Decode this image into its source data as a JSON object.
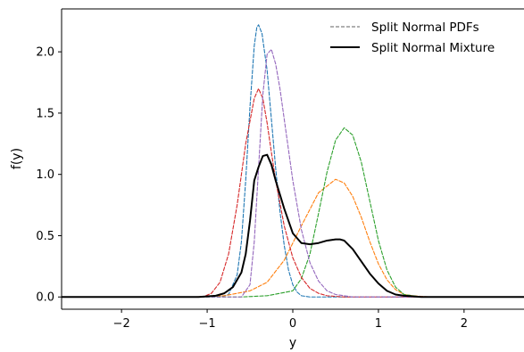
{
  "chart_data": {
    "type": "line",
    "xlabel": "y",
    "ylabel": "f(y)",
    "xlim": [
      -2.7,
      2.7
    ],
    "ylim": [
      -0.1,
      2.35
    ],
    "x_ticks": [
      -2,
      -1,
      0,
      1,
      2
    ],
    "x_tick_labels": [
      "−2",
      "−1",
      "0",
      "1",
      "2"
    ],
    "y_ticks": [
      0.0,
      0.5,
      1.0,
      1.5,
      2.0
    ],
    "y_tick_labels": [
      "0.0",
      "0.5",
      "1.0",
      "1.5",
      "2.0"
    ],
    "grid": false,
    "legend": {
      "position": "top-right",
      "entries": [
        {
          "label": "Split Normal PDFs",
          "style": "dashed",
          "color": "#808080"
        },
        {
          "label": "Split Normal Mixture",
          "style": "solid",
          "color": "#000000"
        }
      ]
    },
    "series": [
      {
        "color": "#1f77b4",
        "style": "dashed",
        "x": [
          -0.85,
          -0.75,
          -0.65,
          -0.6,
          -0.55,
          -0.5,
          -0.45,
          -0.42,
          -0.4,
          -0.36,
          -0.3,
          -0.25,
          -0.2,
          -0.15,
          -0.1,
          -0.05,
          0,
          0.05,
          0.1,
          0.2,
          0.3
        ],
        "y": [
          0,
          0.02,
          0.18,
          0.45,
          0.95,
          1.55,
          2.05,
          2.2,
          2.22,
          2.15,
          1.85,
          1.45,
          1.05,
          0.7,
          0.42,
          0.22,
          0.1,
          0.04,
          0.01,
          0,
          0
        ]
      },
      {
        "color": "#ff7f0e",
        "style": "dashed",
        "x": [
          -1.2,
          -0.8,
          -0.5,
          -0.3,
          -0.1,
          0.1,
          0.3,
          0.5,
          0.6,
          0.7,
          0.8,
          0.9,
          1.0,
          1.1,
          1.2,
          1.3,
          1.4,
          1.6
        ],
        "y": [
          0,
          0.01,
          0.05,
          0.12,
          0.3,
          0.58,
          0.85,
          0.96,
          0.93,
          0.82,
          0.65,
          0.45,
          0.27,
          0.14,
          0.06,
          0.02,
          0.01,
          0
        ]
      },
      {
        "color": "#2ca02c",
        "style": "dashed",
        "x": [
          -0.6,
          -0.3,
          0,
          0.1,
          0.2,
          0.3,
          0.4,
          0.5,
          0.6,
          0.7,
          0.8,
          0.9,
          1.0,
          1.1,
          1.2,
          1.3,
          1.5
        ],
        "y": [
          0,
          0.01,
          0.05,
          0.15,
          0.35,
          0.68,
          1.02,
          1.28,
          1.38,
          1.32,
          1.1,
          0.78,
          0.46,
          0.22,
          0.08,
          0.02,
          0
        ]
      },
      {
        "color": "#d62728",
        "style": "dashed",
        "x": [
          -1.05,
          -0.95,
          -0.85,
          -0.75,
          -0.65,
          -0.55,
          -0.45,
          -0.4,
          -0.35,
          -0.3,
          -0.25,
          -0.2,
          -0.1,
          0,
          0.1,
          0.2,
          0.3,
          0.4,
          0.6
        ],
        "y": [
          0,
          0.03,
          0.12,
          0.35,
          0.75,
          1.25,
          1.62,
          1.7,
          1.62,
          1.42,
          1.18,
          0.95,
          0.58,
          0.32,
          0.16,
          0.07,
          0.03,
          0.01,
          0
        ]
      },
      {
        "color": "#9467bd",
        "style": "dashed",
        "x": [
          -0.6,
          -0.5,
          -0.45,
          -0.4,
          -0.35,
          -0.3,
          -0.25,
          -0.2,
          -0.15,
          -0.1,
          -0.05,
          0,
          0.1,
          0.2,
          0.3,
          0.4,
          0.5,
          0.6,
          0.7
        ],
        "y": [
          0,
          0.1,
          0.45,
          1.05,
          1.65,
          1.98,
          2.02,
          1.9,
          1.7,
          1.45,
          1.2,
          0.95,
          0.55,
          0.28,
          0.13,
          0.05,
          0.02,
          0.01,
          0
        ]
      },
      {
        "color": "#000000",
        "style": "solid",
        "x": [
          -1.1,
          -0.9,
          -0.8,
          -0.7,
          -0.6,
          -0.55,
          -0.5,
          -0.45,
          -0.4,
          -0.35,
          -0.3,
          -0.25,
          -0.2,
          -0.1,
          0,
          0.1,
          0.2,
          0.3,
          0.4,
          0.5,
          0.55,
          0.6,
          0.7,
          0.8,
          0.9,
          1.0,
          1.1,
          1.2,
          1.3,
          1.5
        ],
        "y": [
          0,
          0.01,
          0.03,
          0.08,
          0.2,
          0.35,
          0.62,
          0.95,
          1.06,
          1.15,
          1.16,
          1.08,
          0.95,
          0.72,
          0.52,
          0.44,
          0.43,
          0.44,
          0.46,
          0.47,
          0.47,
          0.46,
          0.39,
          0.29,
          0.19,
          0.11,
          0.05,
          0.02,
          0.01,
          0
        ]
      }
    ]
  }
}
